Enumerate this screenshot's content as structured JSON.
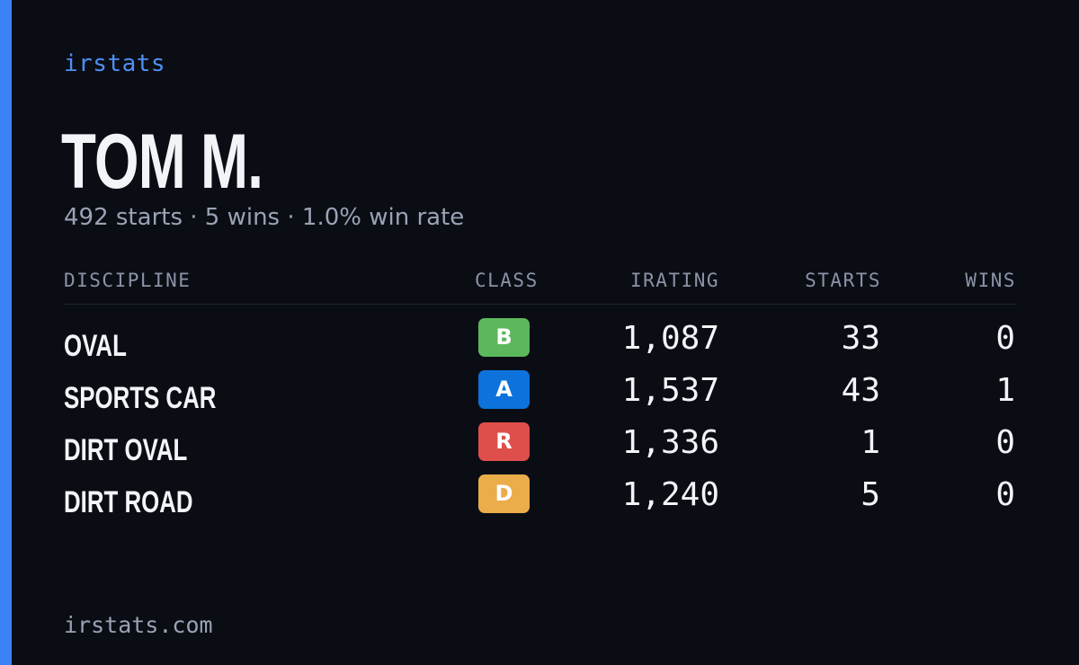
{
  "brand": "irstats",
  "driver_name": "TOM M.",
  "summary": "492 starts · 5 wins · 1.0% win rate",
  "table": {
    "headers": {
      "discipline": "DISCIPLINE",
      "class": "CLASS",
      "irating": "IRATING",
      "starts": "STARTS",
      "wins": "WINS"
    },
    "rows": [
      {
        "discipline": "OVAL",
        "class": "B",
        "class_color": "#5cb85c",
        "irating": "1,087",
        "starts": "33",
        "wins": "0"
      },
      {
        "discipline": "SPORTS CAR",
        "class": "A",
        "class_color": "#0d72db",
        "irating": "1,537",
        "starts": "43",
        "wins": "1"
      },
      {
        "discipline": "DIRT OVAL",
        "class": "R",
        "class_color": "#de4f4b",
        "irating": "1,336",
        "starts": "1",
        "wins": "0"
      },
      {
        "discipline": "DIRT ROAD",
        "class": "D",
        "class_color": "#ebac4a",
        "irating": "1,240",
        "starts": "5",
        "wins": "0"
      }
    ]
  },
  "footer": "irstats.com",
  "colors": {
    "background": "#0a0d14",
    "accent": "#3b82f6",
    "brand": "#4f8ff7",
    "muted_text": "#9aa3b5",
    "primary_text": "#f3f4f8"
  }
}
